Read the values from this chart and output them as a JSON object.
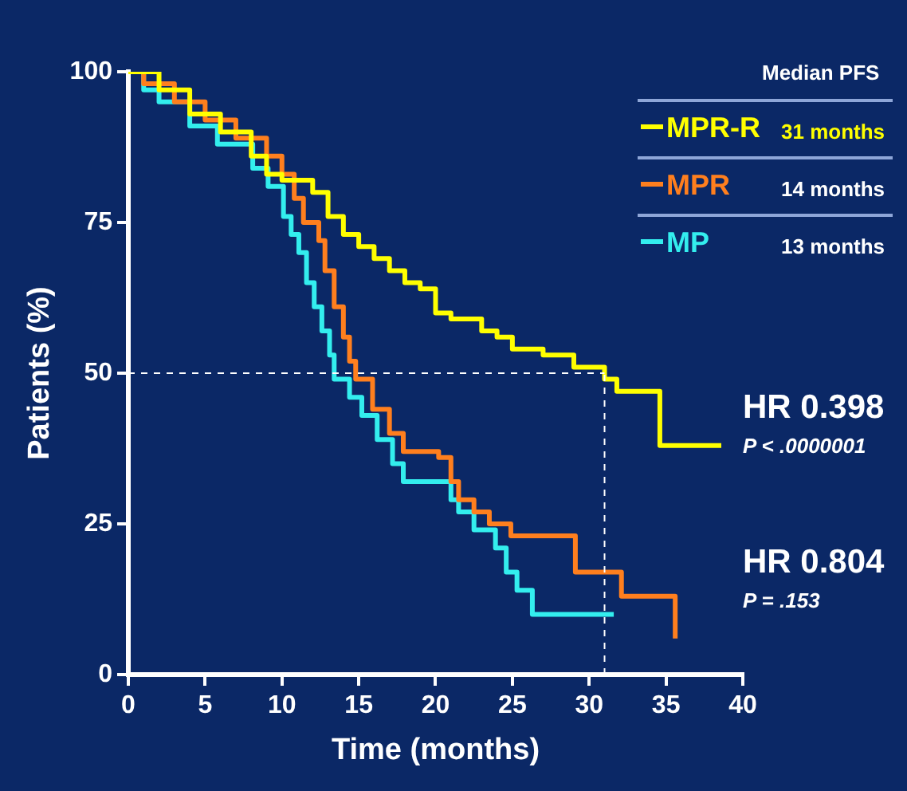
{
  "chart_data": {
    "type": "step",
    "xlabel": "Time (months)",
    "ylabel": "Patients (%)",
    "xlim": [
      0,
      40
    ],
    "xticks": [
      0,
      5,
      10,
      15,
      20,
      25,
      30,
      35,
      40
    ],
    "ylim": [
      0,
      100
    ],
    "yticks": [
      0,
      25,
      50,
      75,
      100
    ],
    "grid": false,
    "legend": "top right",
    "series": [
      {
        "name": "MPR-R",
        "color": "#ffff00",
        "x": [
          0,
          2,
          4,
          6,
          8,
          9,
          10,
          12,
          13,
          14,
          15,
          16,
          17,
          18,
          19,
          20,
          21,
          23,
          24,
          25,
          27,
          29,
          31,
          31.8,
          34.6,
          38.6
        ],
        "values": [
          100,
          97,
          93,
          90,
          86,
          83,
          82,
          80,
          76,
          73,
          71,
          69,
          67,
          65,
          64,
          60,
          59,
          57,
          56,
          54,
          53,
          51,
          49,
          47,
          38,
          38
        ]
      },
      {
        "name": "MPR",
        "color": "#ff7f1e",
        "x": [
          0,
          1,
          3,
          5,
          7,
          9,
          10,
          10.8,
          11.4,
          12.4,
          12.8,
          13.4,
          14,
          14.4,
          14.8,
          15.9,
          17,
          17.9,
          20.2,
          21,
          21.5,
          22.5,
          23.5,
          24.9,
          28.5,
          29.1,
          32.1,
          35.6
        ],
        "values": [
          100,
          98,
          95,
          92,
          89,
          86,
          83,
          79,
          75,
          72,
          67,
          61,
          56,
          52,
          49,
          44,
          40,
          37,
          36,
          32,
          29,
          27,
          25,
          23,
          23,
          17,
          13,
          6
        ]
      },
      {
        "name": "MP",
        "color": "#33eeee",
        "x": [
          0,
          1,
          2,
          4,
          5.8,
          8.1,
          9.1,
          10.1,
          10.6,
          11.1,
          11.6,
          12.1,
          12.6,
          13.1,
          13.4,
          14.4,
          15.2,
          16.2,
          17.2,
          17.9,
          20.5,
          21,
          21.5,
          22.5,
          23.9,
          24.6,
          25.3,
          26.3,
          31.6
        ],
        "values": [
          100,
          97,
          95,
          91,
          88,
          84,
          81,
          76,
          73,
          70,
          65,
          61,
          57,
          53,
          49,
          46,
          43,
          39,
          35,
          32,
          32,
          29,
          27,
          24,
          21,
          17,
          14,
          10,
          10
        ]
      }
    ],
    "ref_lines": [
      {
        "axis": "y",
        "value": 50,
        "line_style": "dashed",
        "color": "#ffffff"
      },
      {
        "axis": "x",
        "value": 31,
        "line_style": "dashed",
        "color": "#ffffff"
      }
    ],
    "annotations": [
      "Median PFS",
      "31 months",
      "14 months",
      "13 months",
      "HR 0.398",
      "P < .0000001",
      "HR 0.804",
      "P = .153"
    ]
  }
}
